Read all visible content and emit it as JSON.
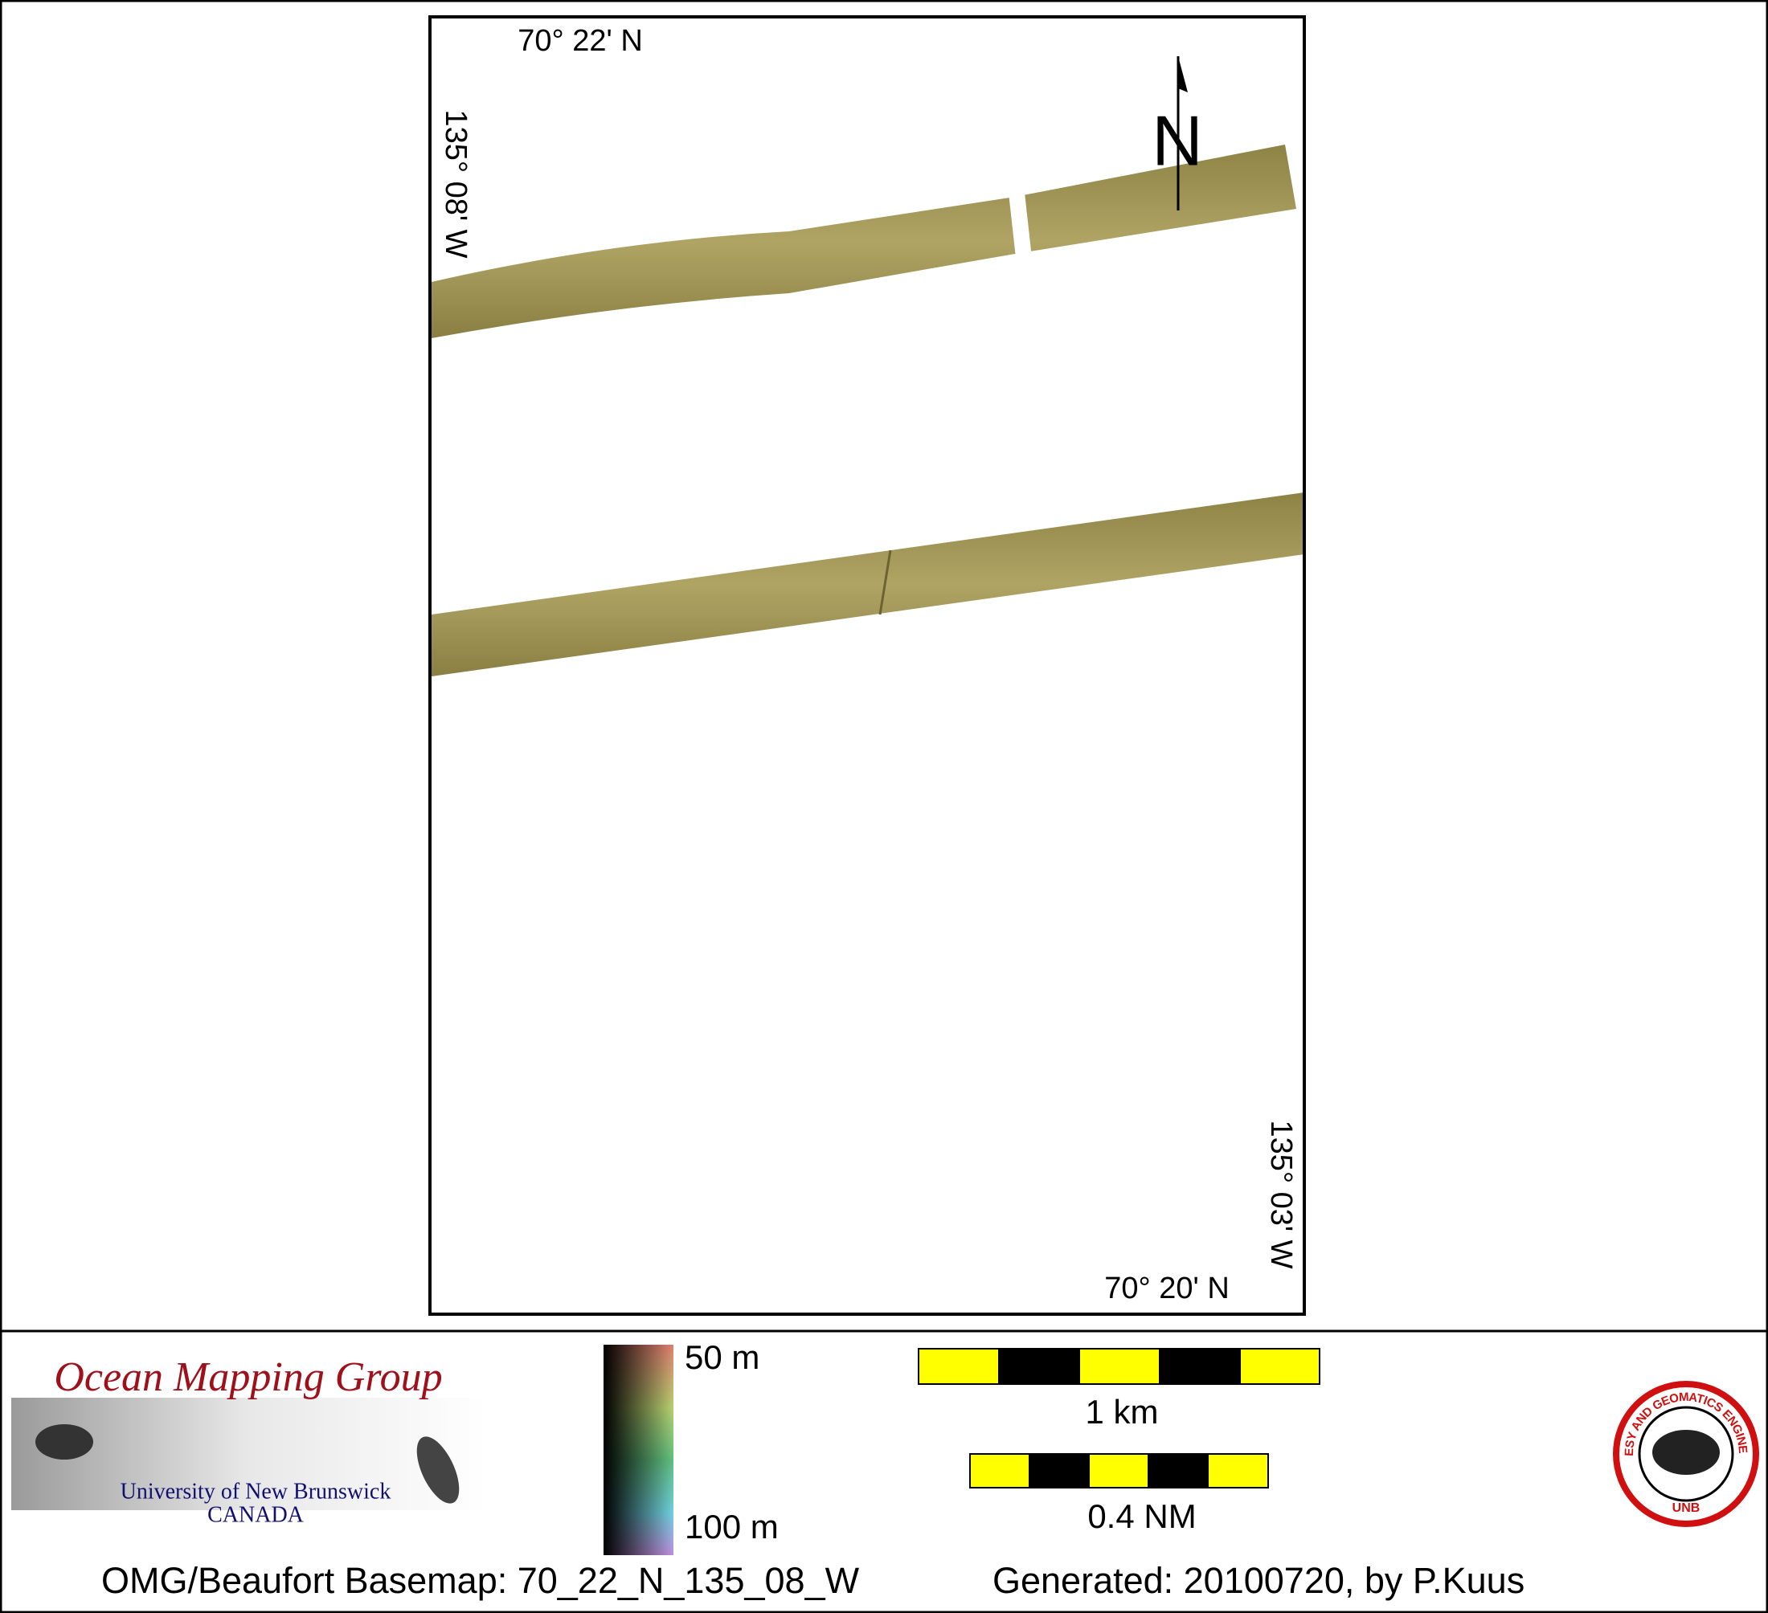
{
  "map": {
    "lat_top_left": "70° 22' N",
    "lon_left": "135° 08' W",
    "lon_right": "135° 03' W",
    "lat_bottom_right": "70° 20' N",
    "north_label": "N"
  },
  "footer": {
    "logo_title": "Ocean Mapping Group",
    "logo_university": "University of New Brunswick",
    "logo_country": "CANADA",
    "depth_top": "50 m",
    "depth_bottom": "100 m",
    "scale_km": "1 km",
    "scale_nm": "0.4 NM",
    "basemap": "OMG/Beaufort Basemap: 70_22_N_135_08_W",
    "generated": "Generated: 20100720, by P.Kuus",
    "seal_text": "GEODESY AND GEOMATICS ENGINEERING",
    "seal_abbr": "UNB"
  }
}
